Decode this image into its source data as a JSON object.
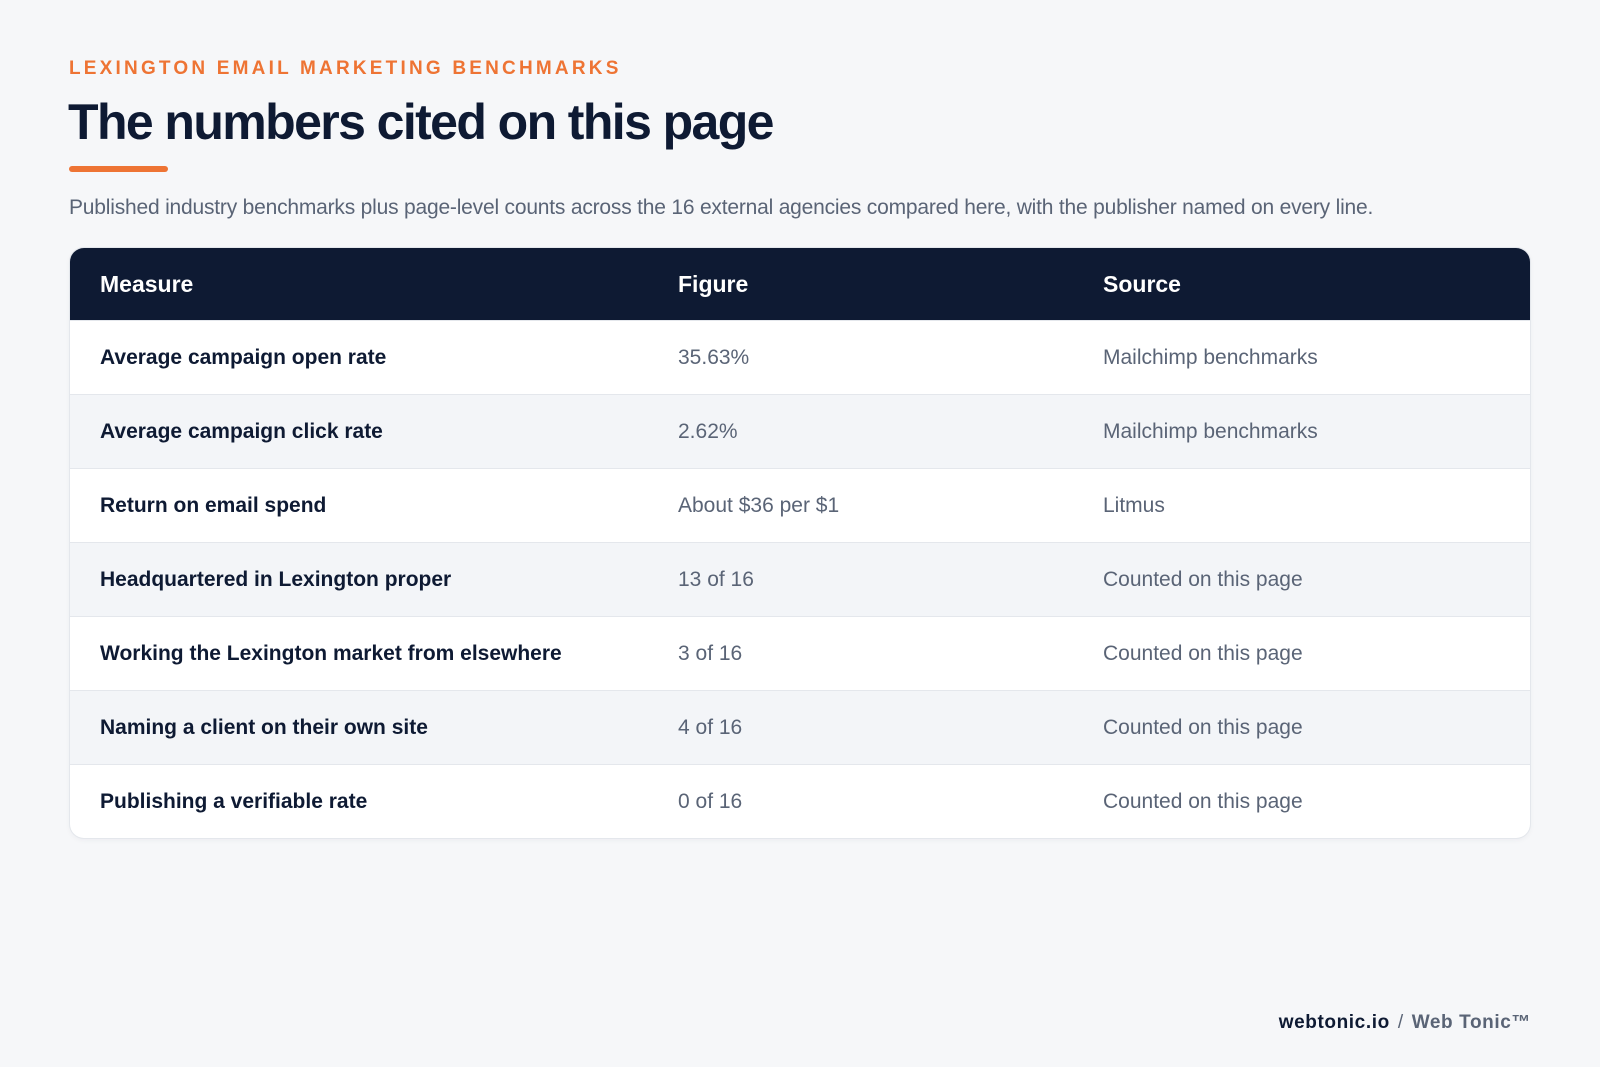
{
  "header": {
    "eyebrow": "LEXINGTON EMAIL MARKETING BENCHMARKS",
    "title": "The numbers cited on this page",
    "intro": "Published industry benchmarks plus page-level counts across the 16 external agencies compared here, with the publisher named on every line."
  },
  "table": {
    "columns": {
      "measure": "Measure",
      "figure": "Figure",
      "source": "Source"
    },
    "rows": [
      {
        "measure": "Average campaign open rate",
        "figure": "35.63%",
        "source": "Mailchimp benchmarks"
      },
      {
        "measure": "Average campaign click rate",
        "figure": "2.62%",
        "source": "Mailchimp benchmarks"
      },
      {
        "measure": "Return on email spend",
        "figure": "About $36 per $1",
        "source": "Litmus"
      },
      {
        "measure": "Headquartered in Lexington proper",
        "figure": "13 of 16",
        "source": "Counted on this page"
      },
      {
        "measure": "Working the Lexington market from elsewhere",
        "figure": "3 of 16",
        "source": "Counted on this page"
      },
      {
        "measure": "Naming a client on their own site",
        "figure": "4 of 16",
        "source": "Counted on this page"
      },
      {
        "measure": "Publishing a verifiable rate",
        "figure": "0 of 16",
        "source": "Counted on this page"
      }
    ]
  },
  "footer": {
    "domain": "webtonic.io",
    "separator": "/",
    "brand": "Web Tonic™"
  },
  "colors": {
    "accent": "#ee7434",
    "navy": "#0e1a33",
    "muted": "#5a6476",
    "background": "#f6f7f9"
  }
}
